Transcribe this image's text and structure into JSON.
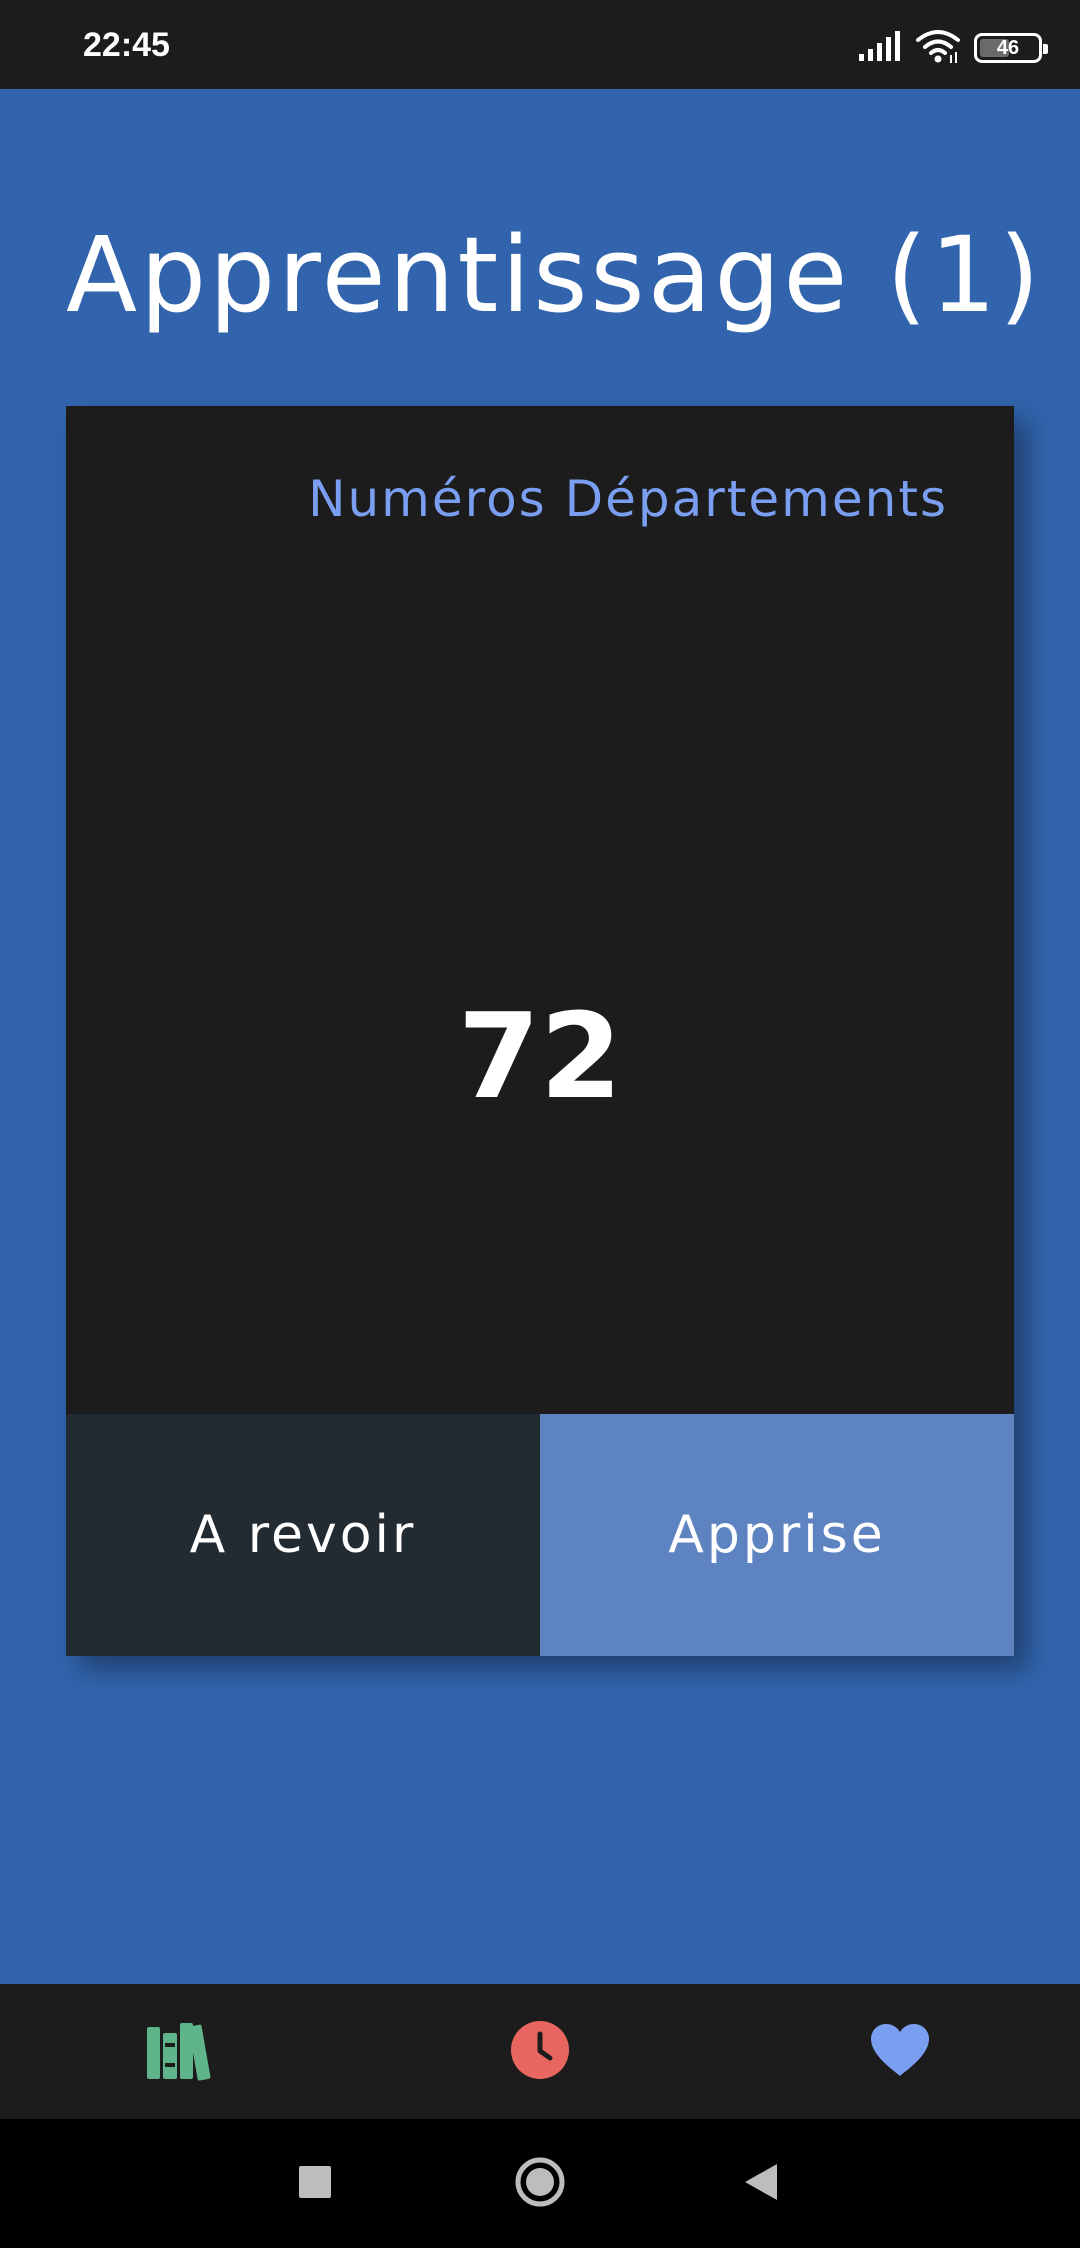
{
  "status_bar": {
    "time": "22:45",
    "battery_level": "46",
    "icons": [
      "signal-icon",
      "wifi-icon",
      "battery-icon"
    ]
  },
  "header": {
    "title": "Apprentissage (1)"
  },
  "card": {
    "category": "Numéros Départements",
    "value": "72",
    "actions": {
      "review_label": "A revoir",
      "learned_label": "Apprise"
    }
  },
  "bottom_nav": {
    "items": [
      {
        "icon": "library-icon",
        "color": "#5fb48a"
      },
      {
        "icon": "clock-icon",
        "color": "#e8665f"
      },
      {
        "icon": "heart-icon",
        "color": "#7a9ef0"
      }
    ]
  },
  "system_nav": {
    "icons": [
      "recents-icon",
      "home-icon",
      "back-icon"
    ]
  },
  "colors": {
    "background": "#3164ad",
    "card": "#1c1c1c",
    "category_text": "#7a9ef0",
    "review_button": "#222a32",
    "learned_button": "#5d84c0"
  }
}
